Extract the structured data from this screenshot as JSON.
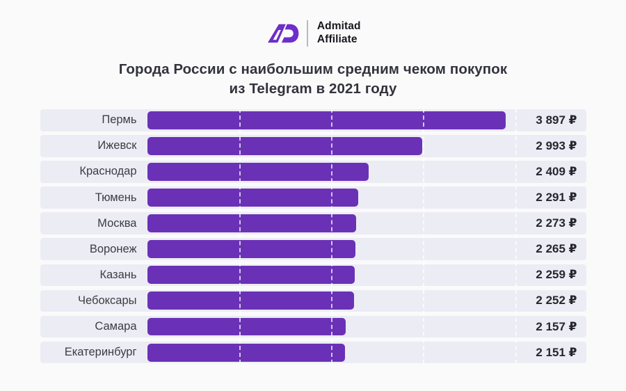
{
  "page": {
    "background": "#fafafb"
  },
  "logo": {
    "mark": "admitad-ad-monogram",
    "brand_color": "#6d2ec9",
    "line1": "Admitad",
    "line2": "Affiliate"
  },
  "title": {
    "line1": "Города России с наибольшим средним чеком покупок",
    "line2": "из Telegram в 2021 году"
  },
  "chart_data": {
    "type": "bar",
    "orientation": "horizontal",
    "title": "Города России с наибольшим средним чеком покупок из Telegram в 2021 году",
    "categories": [
      "Пермь",
      "Ижевск",
      "Краснодар",
      "Тюмень",
      "Москва",
      "Воронеж",
      "Казань",
      "Чебоксары",
      "Самара",
      "Екатеринбург"
    ],
    "values": [
      3897,
      2993,
      2409,
      2291,
      2273,
      2265,
      2259,
      2252,
      2157,
      2151
    ],
    "value_labels": [
      "3 897 ₽",
      "2 993 ₽",
      "2 409 ₽",
      "2 291 ₽",
      "2 273 ₽",
      "2 265 ₽",
      "2 259 ₽",
      "2 252 ₽",
      "2 157 ₽",
      "2 151 ₽"
    ],
    "unit": "₽",
    "xlim": [
      0,
      4770
    ],
    "gridline_step": 1000,
    "grid": "dashed-vertical-white",
    "legend": "none",
    "bar_color": "#6a31b6",
    "row_background": "#ececf4"
  }
}
